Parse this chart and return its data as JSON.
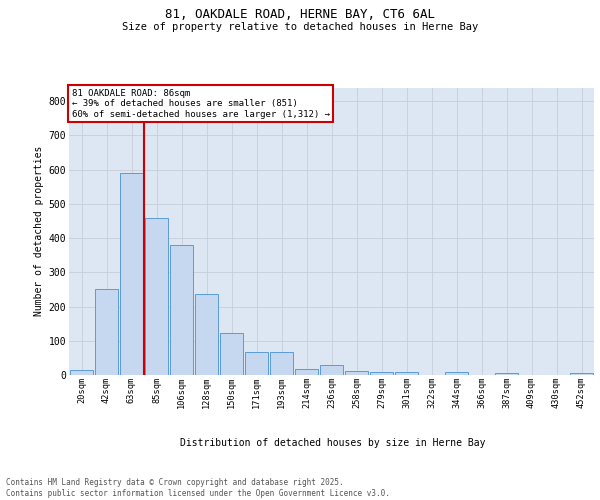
{
  "title_line1": "81, OAKDALE ROAD, HERNE BAY, CT6 6AL",
  "title_line2": "Size of property relative to detached houses in Herne Bay",
  "xlabel": "Distribution of detached houses by size in Herne Bay",
  "ylabel": "Number of detached properties",
  "footer_line1": "Contains HM Land Registry data © Crown copyright and database right 2025.",
  "footer_line2": "Contains public sector information licensed under the Open Government Licence v3.0.",
  "bar_labels": [
    "20sqm",
    "42sqm",
    "63sqm",
    "85sqm",
    "106sqm",
    "128sqm",
    "150sqm",
    "171sqm",
    "193sqm",
    "214sqm",
    "236sqm",
    "258sqm",
    "279sqm",
    "301sqm",
    "322sqm",
    "344sqm",
    "366sqm",
    "387sqm",
    "409sqm",
    "430sqm",
    "452sqm"
  ],
  "bar_values": [
    15,
    250,
    590,
    460,
    380,
    238,
    123,
    67,
    67,
    17,
    30,
    12,
    10,
    8,
    0,
    10,
    0,
    5,
    0,
    0,
    5
  ],
  "bar_color": "#c5d8f0",
  "bar_edge_color": "#5b9bd5",
  "grid_color": "#c8cdd8",
  "bg_color": "#dde6f3",
  "annotation_text": "81 OAKDALE ROAD: 86sqm\n← 39% of detached houses are smaller (851)\n60% of semi-detached houses are larger (1,312) →",
  "vline_color": "#cc0000",
  "annotation_box_edge": "#cc0000",
  "ylim_max": 840,
  "yticks": [
    0,
    100,
    200,
    300,
    400,
    500,
    600,
    700,
    800
  ]
}
